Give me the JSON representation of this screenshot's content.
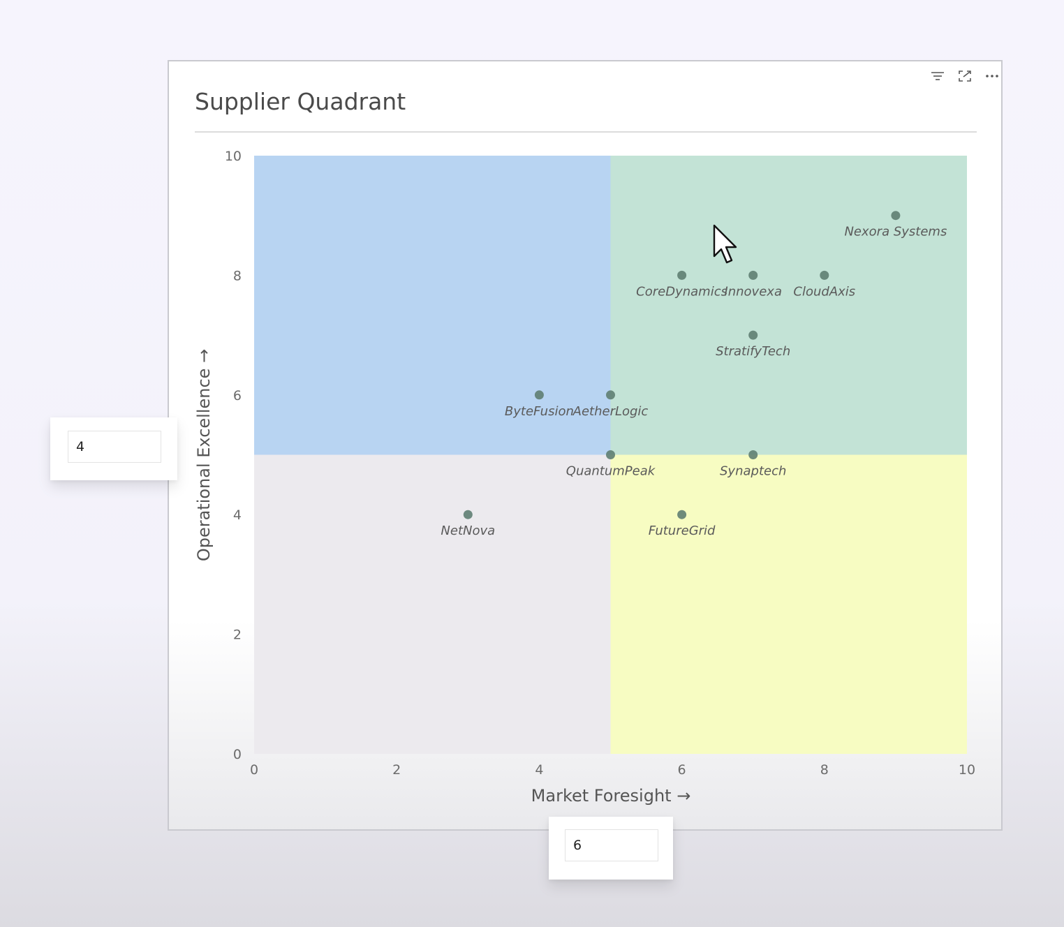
{
  "card": {
    "title": "Supplier Quadrant",
    "toolbar": {
      "filter_icon": "filter-icon",
      "focus_icon": "focus-mode-icon",
      "more_icon": "more-options-icon"
    }
  },
  "y_threshold_input": {
    "value": "4"
  },
  "x_threshold_input": {
    "value": "6"
  },
  "chart_data": {
    "type": "scatter",
    "title": "Supplier Quadrant",
    "xlabel": "Market Foresight →",
    "ylabel": "Operational Excellence →",
    "xlim": [
      0,
      10
    ],
    "ylim": [
      0,
      10
    ],
    "x_ticks": [
      0,
      2,
      4,
      6,
      8,
      10
    ],
    "y_ticks": [
      0,
      2,
      4,
      6,
      8,
      10
    ],
    "grid": false,
    "quadrant_split": {
      "x": 5,
      "y": 5
    },
    "quadrant_colors": {
      "top_left": "#b8d4f2",
      "top_right": "#c3e3d6",
      "bottom_left": "#eceaee",
      "bottom_right": "#f7fcc2"
    },
    "marker_color": "#5f7e72",
    "points": [
      {
        "name": "Nexora Systems",
        "x": 9,
        "y": 9
      },
      {
        "name": "CoreDynamics",
        "x": 6,
        "y": 8
      },
      {
        "name": "Innovexa",
        "x": 7,
        "y": 8
      },
      {
        "name": "CloudAxis",
        "x": 8,
        "y": 8
      },
      {
        "name": "StratifyTech",
        "x": 7,
        "y": 7
      },
      {
        "name": "ByteFusion",
        "x": 4,
        "y": 6
      },
      {
        "name": "AetherLogic",
        "x": 5,
        "y": 6
      },
      {
        "name": "QuantumPeak",
        "x": 5,
        "y": 5
      },
      {
        "name": "Synaptech",
        "x": 7,
        "y": 5
      },
      {
        "name": "NetNova",
        "x": 3,
        "y": 4
      },
      {
        "name": "FutureGrid",
        "x": 6,
        "y": 4
      }
    ]
  }
}
